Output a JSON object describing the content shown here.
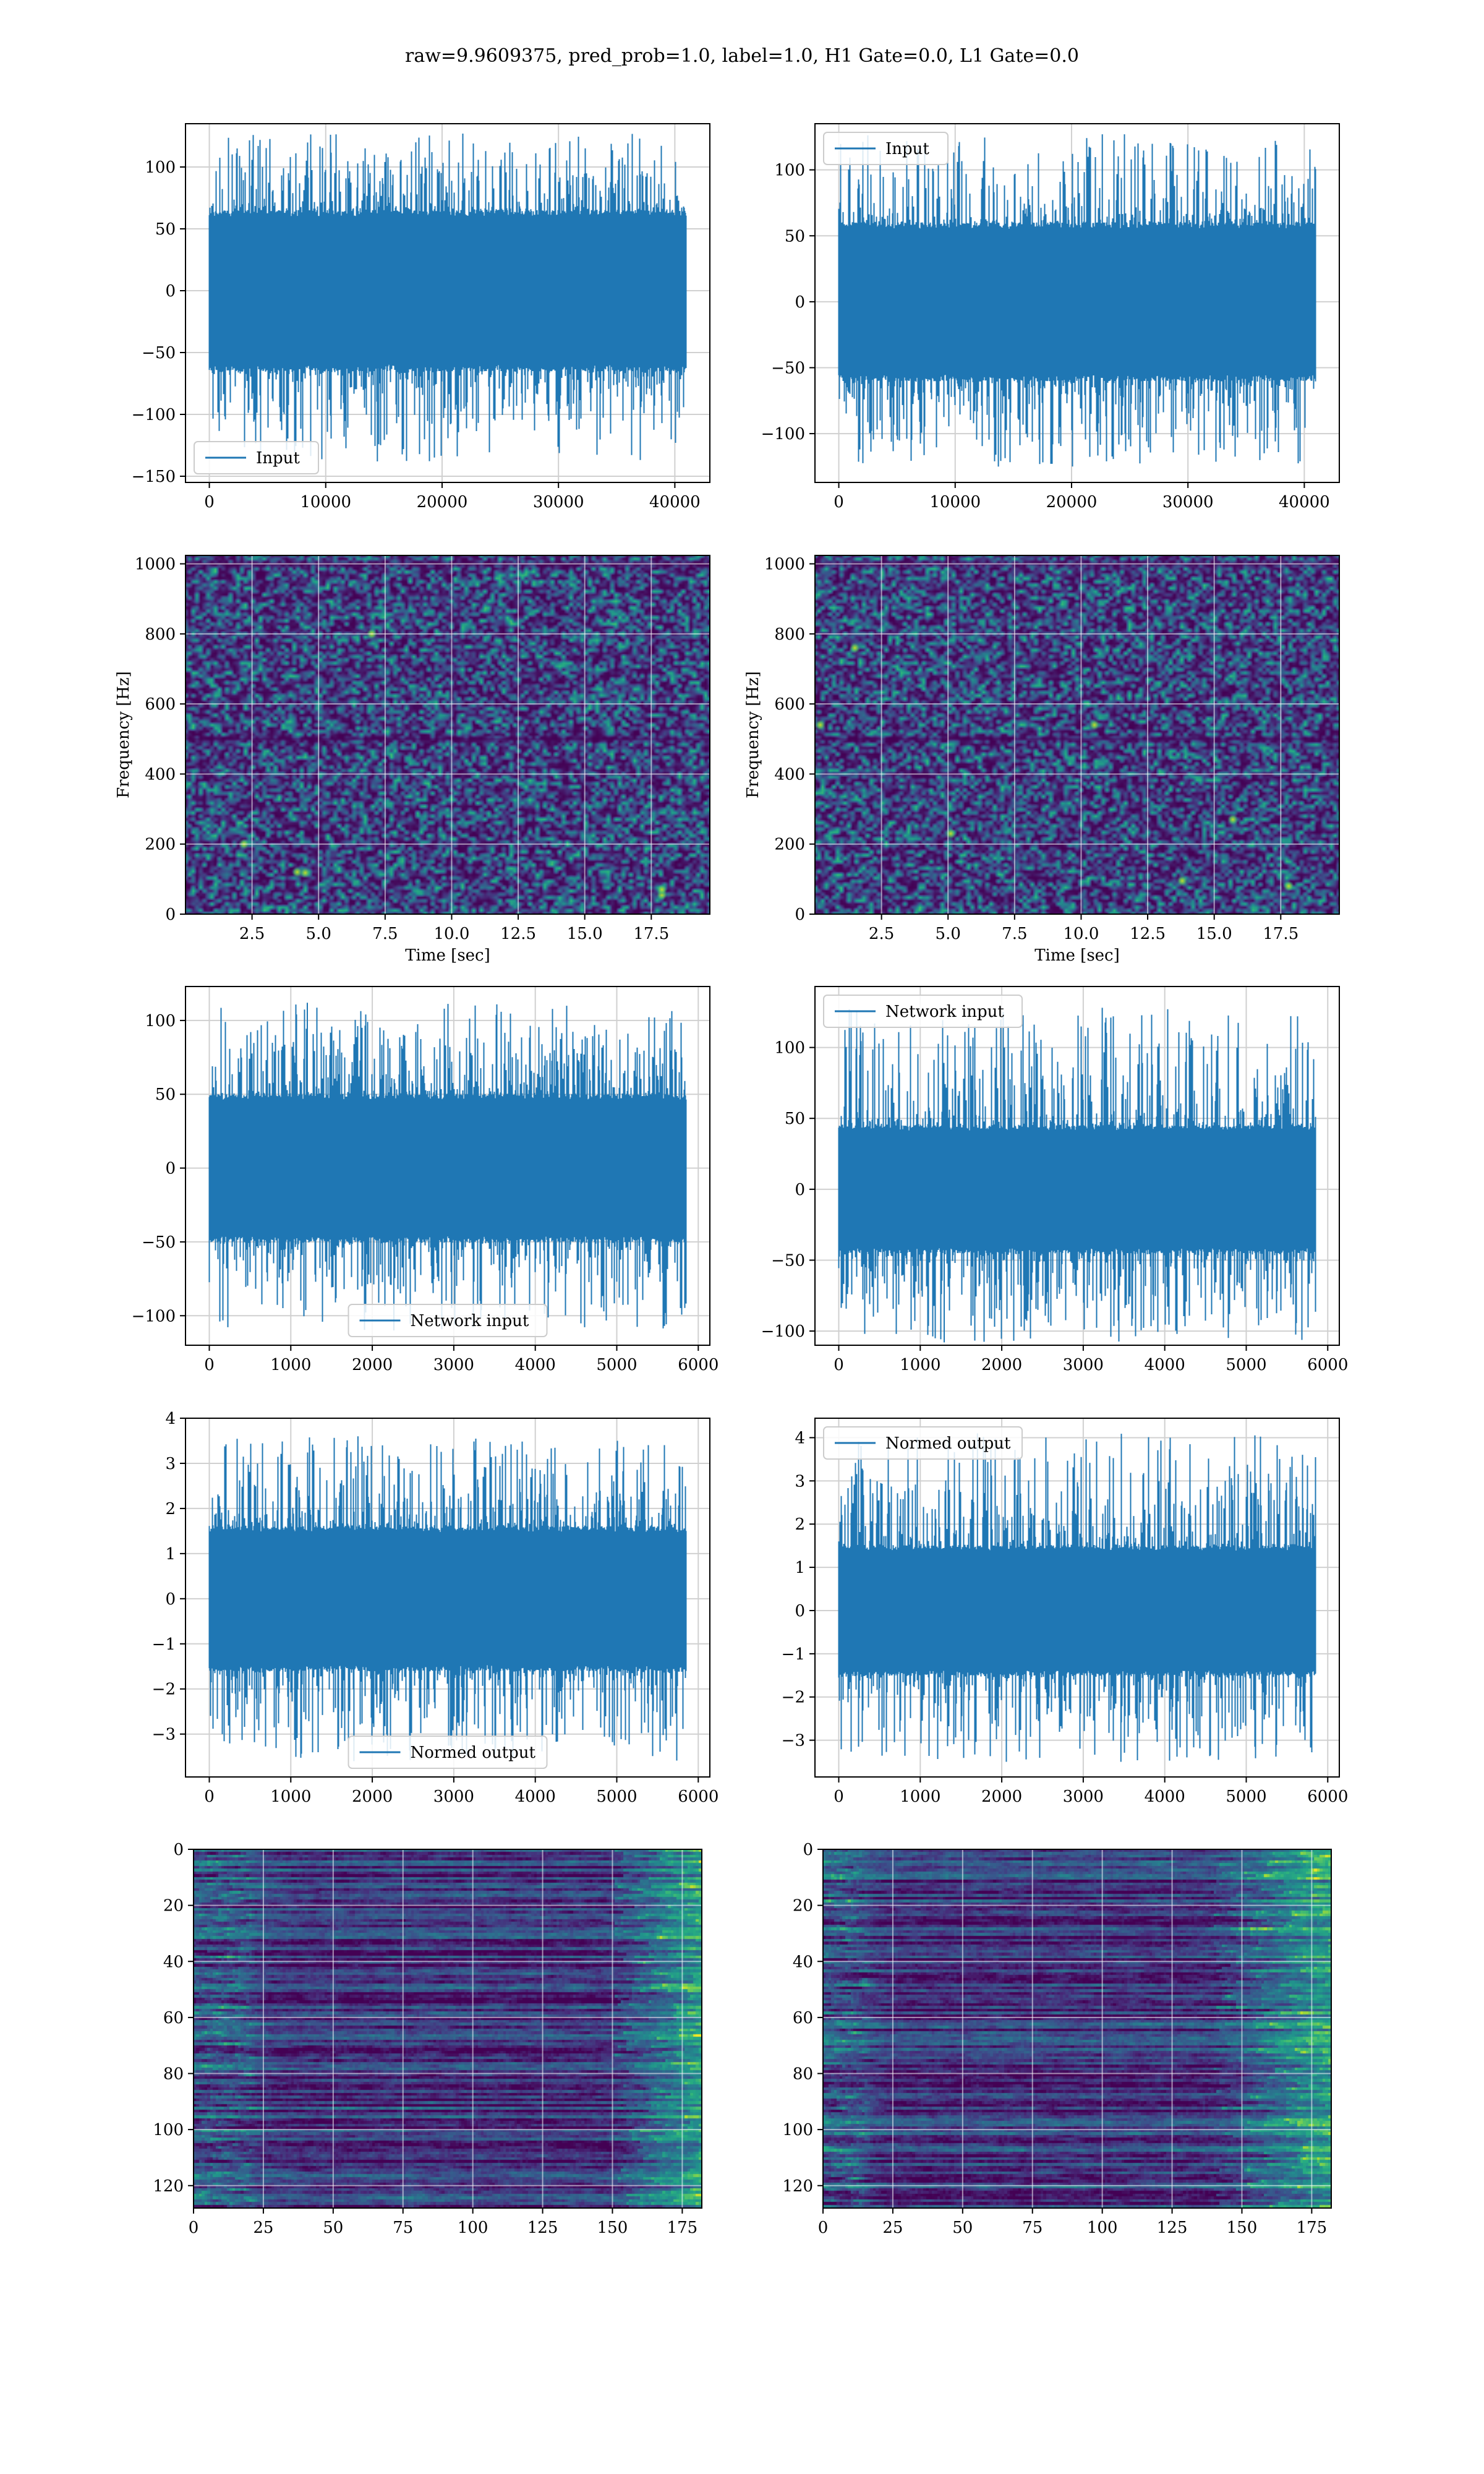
{
  "figure": {
    "suptitle": "raw=9.9609375, pred_prob=1.0, label=1.0, H1 Gate=0.0, L1 Gate=0.0",
    "colors": {
      "line": "#1f77b4",
      "grid": "#d0d0d0",
      "axes": "#000000"
    }
  },
  "chart_data": [
    {
      "id": "input_h1",
      "type": "line",
      "series": [
        {
          "name": "Input",
          "n_points": 40960,
          "envelope": {
            "typical": [
              -65,
              65
            ],
            "max": 127,
            "min": -138
          }
        }
      ],
      "xlim": [
        -2048,
        43008
      ],
      "ylim": [
        -155,
        135
      ],
      "xticks": [
        0,
        10000,
        20000,
        30000,
        40000
      ],
      "xticklabels": [
        "0",
        "10000",
        "20000",
        "30000",
        "40000"
      ],
      "yticks": [
        -150,
        -100,
        -50,
        0,
        50,
        100
      ],
      "yticklabels": [
        "−150",
        "−100",
        "−50",
        "0",
        "50",
        "100"
      ],
      "legend": "lower-left",
      "grid": true,
      "xlabel": "",
      "ylabel": ""
    },
    {
      "id": "input_l1",
      "type": "line",
      "series": [
        {
          "name": "Input",
          "n_points": 40960,
          "envelope": {
            "typical": [
              -60,
              60
            ],
            "max": 127,
            "min": -125
          }
        }
      ],
      "xlim": [
        -2048,
        43008
      ],
      "ylim": [
        -137,
        135
      ],
      "xticks": [
        0,
        10000,
        20000,
        30000,
        40000
      ],
      "xticklabels": [
        "0",
        "10000",
        "20000",
        "30000",
        "40000"
      ],
      "yticks": [
        -100,
        -50,
        0,
        50,
        100
      ],
      "yticklabels": [
        "−100",
        "−50",
        "0",
        "50",
        "100"
      ],
      "legend": "upper-left",
      "grid": true,
      "xlabel": "",
      "ylabel": ""
    },
    {
      "id": "spectrogram_h1",
      "type": "heatmap",
      "xlim": [
        0,
        19.7
      ],
      "ylim": [
        0,
        1024
      ],
      "xticks": [
        2.5,
        5.0,
        7.5,
        10.0,
        12.5,
        15.0,
        17.5
      ],
      "xticklabels": [
        "2.5",
        "5.0",
        "7.5",
        "10.0",
        "12.5",
        "15.0",
        "17.5"
      ],
      "yticks": [
        0,
        200,
        400,
        600,
        800,
        1000
      ],
      "yticklabels": [
        "0",
        "200",
        "400",
        "600",
        "800",
        "1000"
      ],
      "xlabel": "Time [sec]",
      "ylabel": "Frequency [Hz]",
      "colormap": "viridis",
      "grid": true,
      "dark_bands_hz": [
        500,
        1000
      ],
      "bright_spots": [
        {
          "t": 4.2,
          "f": 120
        },
        {
          "t": 4.5,
          "f": 118
        },
        {
          "t": 17.9,
          "f": 55
        },
        {
          "t": 17.9,
          "f": 70
        },
        {
          "t": 7.0,
          "f": 800
        },
        {
          "t": 2.2,
          "f": 200
        }
      ]
    },
    {
      "id": "spectrogram_l1",
      "type": "heatmap",
      "xlim": [
        0,
        19.7
      ],
      "ylim": [
        0,
        1024
      ],
      "xticks": [
        2.5,
        5.0,
        7.5,
        10.0,
        12.5,
        15.0,
        17.5
      ],
      "xticklabels": [
        "2.5",
        "5.0",
        "7.5",
        "10.0",
        "12.5",
        "15.0",
        "17.5"
      ],
      "yticks": [
        0,
        200,
        400,
        600,
        800,
        1000
      ],
      "yticklabels": [
        "0",
        "200",
        "400",
        "600",
        "800",
        "1000"
      ],
      "xlabel": "Time [sec]",
      "ylabel": "Frequency [Hz]",
      "colormap": "viridis",
      "grid": true,
      "dark_bands_hz": [
        500,
        1000
      ],
      "bright_spots": [
        {
          "t": 10.5,
          "f": 540
        },
        {
          "t": 5.1,
          "f": 230
        },
        {
          "t": 13.8,
          "f": 95
        },
        {
          "t": 17.8,
          "f": 80
        },
        {
          "t": 15.7,
          "f": 270
        },
        {
          "t": 0.2,
          "f": 540
        },
        {
          "t": 1.5,
          "f": 760
        }
      ]
    },
    {
      "id": "network_input_h1",
      "type": "line",
      "series": [
        {
          "name": "Network input",
          "n_points": 5850,
          "envelope": {
            "typical": [
              -50,
              50
            ],
            "max": 112,
            "min": -110
          }
        }
      ],
      "xlim": [
        -292,
        6142
      ],
      "ylim": [
        -120,
        123
      ],
      "xticks": [
        0,
        1000,
        2000,
        3000,
        4000,
        5000,
        6000
      ],
      "xticklabels": [
        "0",
        "1000",
        "2000",
        "3000",
        "4000",
        "5000",
        "6000"
      ],
      "yticks": [
        -100,
        -50,
        0,
        50,
        100
      ],
      "yticklabels": [
        "−100",
        "−50",
        "0",
        "50",
        "100"
      ],
      "legend": "lower-center",
      "grid": true,
      "xlabel": "",
      "ylabel": ""
    },
    {
      "id": "network_input_l1",
      "type": "line",
      "series": [
        {
          "name": "Network input",
          "n_points": 5850,
          "envelope": {
            "typical": [
              -45,
              45
            ],
            "max": 128,
            "min": -108
          }
        }
      ],
      "xlim": [
        -292,
        6142
      ],
      "ylim": [
        -110,
        143
      ],
      "xticks": [
        0,
        1000,
        2000,
        3000,
        4000,
        5000,
        6000
      ],
      "xticklabels": [
        "0",
        "1000",
        "2000",
        "3000",
        "4000",
        "5000",
        "6000"
      ],
      "yticks": [
        -100,
        -50,
        0,
        50,
        100
      ],
      "yticklabels": [
        "−100",
        "−50",
        "0",
        "50",
        "100"
      ],
      "legend": "upper-left",
      "grid": true,
      "xlabel": "",
      "ylabel": ""
    },
    {
      "id": "normed_output_h1",
      "type": "line",
      "series": [
        {
          "name": "Normed output",
          "n_points": 5850,
          "envelope": {
            "typical": [
              -1.6,
              1.6
            ],
            "max": 3.6,
            "min": -3.6
          }
        }
      ],
      "xlim": [
        -292,
        6142
      ],
      "ylim": [
        -3.95,
        4.0
      ],
      "xticks": [
        0,
        1000,
        2000,
        3000,
        4000,
        5000,
        6000
      ],
      "xticklabels": [
        "0",
        "1000",
        "2000",
        "3000",
        "4000",
        "5000",
        "6000"
      ],
      "yticks": [
        -3,
        -2,
        -1,
        0,
        1,
        2,
        3,
        4
      ],
      "yticklabels": [
        "−3",
        "−2",
        "−1",
        "0",
        "1",
        "2",
        "3",
        "4"
      ],
      "legend": "lower-center",
      "grid": true,
      "xlabel": "",
      "ylabel": ""
    },
    {
      "id": "normed_output_l1",
      "type": "line",
      "series": [
        {
          "name": "Normed output",
          "n_points": 5850,
          "envelope": {
            "typical": [
              -1.5,
              1.5
            ],
            "max": 4.1,
            "min": -3.5
          }
        }
      ],
      "xlim": [
        -292,
        6142
      ],
      "ylim": [
        -3.85,
        4.45
      ],
      "xticks": [
        0,
        1000,
        2000,
        3000,
        4000,
        5000,
        6000
      ],
      "xticklabels": [
        "0",
        "1000",
        "2000",
        "3000",
        "4000",
        "5000",
        "6000"
      ],
      "yticks": [
        -3,
        -2,
        -1,
        0,
        1,
        2,
        3,
        4
      ],
      "yticklabels": [
        "−3",
        "−2",
        "−1",
        "0",
        "1",
        "2",
        "3",
        "4"
      ],
      "legend": "upper-left",
      "grid": true,
      "xlabel": "",
      "ylabel": ""
    },
    {
      "id": "feature_map_h1",
      "type": "heatmap",
      "xlim": [
        0,
        182
      ],
      "ylim": [
        128,
        0
      ],
      "xticks": [
        0,
        25,
        50,
        75,
        100,
        125,
        150,
        175
      ],
      "xticklabels": [
        "0",
        "25",
        "50",
        "75",
        "100",
        "125",
        "150",
        "175"
      ],
      "yticks": [
        0,
        20,
        40,
        60,
        80,
        100,
        120
      ],
      "yticklabels": [
        "0",
        "20",
        "40",
        "60",
        "80",
        "100",
        "120"
      ],
      "colormap": "viridis",
      "grid": true,
      "xlabel": "",
      "ylabel": "",
      "bright_region_cols": [
        150,
        182
      ],
      "bright_left_cols": [
        0,
        20
      ]
    },
    {
      "id": "feature_map_l1",
      "type": "heatmap",
      "xlim": [
        0,
        182
      ],
      "ylim": [
        128,
        0
      ],
      "xticks": [
        0,
        25,
        50,
        75,
        100,
        125,
        150,
        175
      ],
      "xticklabels": [
        "0",
        "25",
        "50",
        "75",
        "100",
        "125",
        "150",
        "175"
      ],
      "yticks": [
        0,
        20,
        40,
        60,
        80,
        100,
        120
      ],
      "yticklabels": [
        "0",
        "20",
        "40",
        "60",
        "80",
        "100",
        "120"
      ],
      "colormap": "viridis",
      "grid": true,
      "xlabel": "",
      "ylabel": "",
      "bright_region_cols": [
        140,
        182
      ],
      "bright_left_cols": [
        0,
        15
      ]
    }
  ]
}
